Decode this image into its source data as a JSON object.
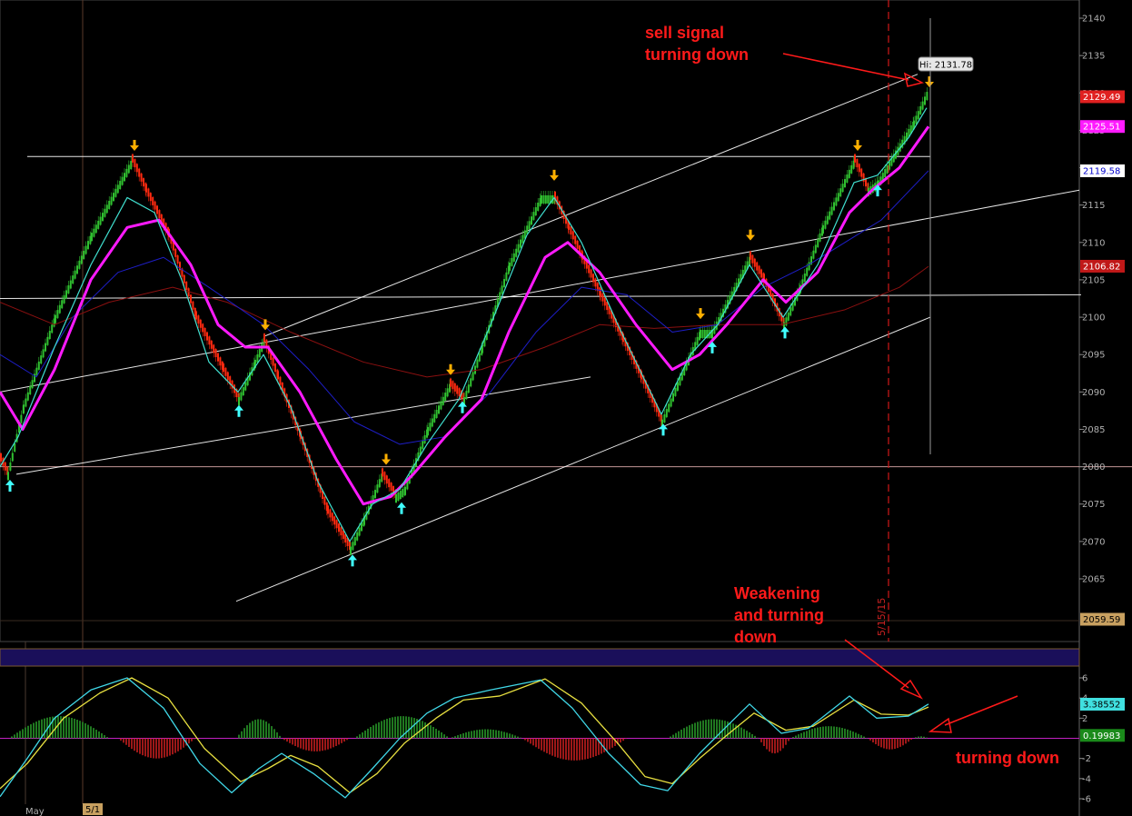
{
  "chart_data": [
    {
      "type": "line",
      "title": "",
      "ylim": [
        2061,
        2142
      ],
      "y_ticks": [
        2065,
        2070,
        2075,
        2080,
        2085,
        2090,
        2095,
        2100,
        2105,
        2110,
        2115,
        2120,
        2125,
        2130,
        2135,
        2140
      ],
      "x_labels": [
        "May",
        "5/1"
      ],
      "date_marker": "5/15/15",
      "hi_label": "Hi: 2131.78",
      "price_badges": [
        {
          "text": "2129.49",
          "value": 2129.49,
          "color": "#e02020",
          "text_color": "#ffffff"
        },
        {
          "text": "2125.51",
          "value": 2125.51,
          "color": "#ff1aff",
          "text_color": "#ffffff"
        },
        {
          "text": "2119.58",
          "value": 2119.58,
          "color": "#ffffff",
          "text_color": "#0000cc"
        },
        {
          "text": "2106.82",
          "value": 2106.82,
          "color": "#c01818",
          "text_color": "#ffffff"
        },
        {
          "text": "2059.59",
          "value": 2059.59,
          "color": "#c8a060",
          "text_color": "#000000"
        }
      ],
      "price_path": [
        [
          0,
          2081
        ],
        [
          8,
          2079
        ],
        [
          25,
          2088
        ],
        [
          60,
          2100
        ],
        [
          100,
          2111
        ],
        [
          145,
          2121
        ],
        [
          160,
          2117
        ],
        [
          185,
          2111
        ],
        [
          215,
          2100
        ],
        [
          245,
          2093
        ],
        [
          262,
          2089
        ],
        [
          280,
          2094
        ],
        [
          290,
          2097
        ],
        [
          305,
          2092
        ],
        [
          330,
          2084
        ],
        [
          360,
          2074
        ],
        [
          385,
          2069
        ],
        [
          400,
          2073
        ],
        [
          420,
          2079
        ],
        [
          435,
          2076
        ],
        [
          445,
          2077
        ],
        [
          470,
          2085
        ],
        [
          495,
          2091
        ],
        [
          510,
          2089
        ],
        [
          530,
          2096
        ],
        [
          560,
          2107
        ],
        [
          595,
          2116
        ],
        [
          610,
          2116
        ],
        [
          625,
          2112
        ],
        [
          640,
          2108
        ],
        [
          660,
          2103
        ],
        [
          685,
          2097
        ],
        [
          705,
          2092
        ],
        [
          728,
          2086
        ],
        [
          745,
          2091
        ],
        [
          770,
          2098
        ],
        [
          783,
          2098
        ],
        [
          800,
          2102
        ],
        [
          825,
          2108
        ],
        [
          840,
          2105
        ],
        [
          862,
          2099
        ],
        [
          880,
          2104
        ],
        [
          905,
          2112
        ],
        [
          940,
          2121
        ],
        [
          955,
          2117
        ],
        [
          966,
          2118
        ],
        [
          985,
          2122
        ],
        [
          1005,
          2126
        ],
        [
          1020,
          2130
        ]
      ],
      "series": [
        {
          "name": "",
          "color": "#40e0d0",
          "values": [
            [
              0,
              2080
            ],
            [
              20,
              2084
            ],
            [
              60,
              2096
            ],
            [
              100,
              2107
            ],
            [
              140,
              2116
            ],
            [
              170,
              2114
            ],
            [
              200,
              2105
            ],
            [
              230,
              2094
            ],
            [
              262,
              2090
            ],
            [
              290,
              2095
            ],
            [
              320,
              2088
            ],
            [
              350,
              2078
            ],
            [
              385,
              2070
            ],
            [
              410,
              2075
            ],
            [
              440,
              2077
            ],
            [
              470,
              2083
            ],
            [
              505,
              2089
            ],
            [
              540,
              2099
            ],
            [
              580,
              2111
            ],
            [
              610,
              2116
            ],
            [
              640,
              2110
            ],
            [
              680,
              2099
            ],
            [
              728,
              2087
            ],
            [
              760,
              2095
            ],
            [
              790,
              2099
            ],
            [
              825,
              2107
            ],
            [
              862,
              2100
            ],
            [
              900,
              2107
            ],
            [
              940,
              2118
            ],
            [
              966,
              2119
            ],
            [
              1000,
              2124
            ],
            [
              1020,
              2128
            ]
          ]
        },
        {
          "name": "",
          "color": "#ff1aff",
          "values": [
            [
              0,
              2090
            ],
            [
              25,
              2085
            ],
            [
              60,
              2093
            ],
            [
              100,
              2105
            ],
            [
              140,
              2112
            ],
            [
              175,
              2113
            ],
            [
              210,
              2107
            ],
            [
              240,
              2099
            ],
            [
              270,
              2096
            ],
            [
              295,
              2096
            ],
            [
              330,
              2090
            ],
            [
              370,
              2081
            ],
            [
              400,
              2075
            ],
            [
              430,
              2076
            ],
            [
              455,
              2079
            ],
            [
              490,
              2084
            ],
            [
              530,
              2089
            ],
            [
              560,
              2098
            ],
            [
              600,
              2108
            ],
            [
              625,
              2110
            ],
            [
              660,
              2106
            ],
            [
              700,
              2099
            ],
            [
              740,
              2093
            ],
            [
              770,
              2095
            ],
            [
              800,
              2099
            ],
            [
              840,
              2105
            ],
            [
              865,
              2102
            ],
            [
              900,
              2106
            ],
            [
              935,
              2114
            ],
            [
              960,
              2117
            ],
            [
              990,
              2120
            ],
            [
              1022,
              2125.5
            ]
          ]
        },
        {
          "name": "",
          "color": "#1e1ec8",
          "values": [
            [
              0,
              2095
            ],
            [
              40,
              2092
            ],
            [
              80,
              2100
            ],
            [
              130,
              2106
            ],
            [
              180,
              2108
            ],
            [
              230,
              2104
            ],
            [
              290,
              2099
            ],
            [
              340,
              2093
            ],
            [
              390,
              2086
            ],
            [
              440,
              2083
            ],
            [
              490,
              2084
            ],
            [
              540,
              2090
            ],
            [
              590,
              2098
            ],
            [
              640,
              2104
            ],
            [
              690,
              2103
            ],
            [
              740,
              2098
            ],
            [
              790,
              2099
            ],
            [
              840,
              2104
            ],
            [
              890,
              2107
            ],
            [
              930,
              2110
            ],
            [
              970,
              2113
            ],
            [
              1022,
              2119.6
            ]
          ]
        },
        {
          "name": "",
          "color": "#8b1010",
          "values": [
            [
              0,
              2102
            ],
            [
              60,
              2099
            ],
            [
              120,
              2102
            ],
            [
              190,
              2104
            ],
            [
              250,
              2102
            ],
            [
              320,
              2098
            ],
            [
              400,
              2094
            ],
            [
              470,
              2092
            ],
            [
              530,
              2093
            ],
            [
              600,
              2096
            ],
            [
              660,
              2099
            ],
            [
              720,
              2098.5
            ],
            [
              790,
              2099
            ],
            [
              860,
              2099
            ],
            [
              930,
              2101
            ],
            [
              990,
              2104
            ],
            [
              1022,
              2106.8
            ]
          ]
        }
      ],
      "signals_down": [
        [
          148,
          2122.5
        ],
        [
          292,
          2098.5
        ],
        [
          425,
          2080.5
        ],
        [
          496,
          2092.5
        ],
        [
          610,
          2118.5
        ],
        [
          771,
          2100
        ],
        [
          826,
          2110.5
        ],
        [
          944,
          2122.5
        ],
        [
          1023,
          2131
        ]
      ],
      "signals_up": [
        [
          11,
          2078
        ],
        [
          263,
          2088
        ],
        [
          388,
          2068
        ],
        [
          442,
          2075
        ],
        [
          509,
          2088.5
        ],
        [
          730,
          2085.5
        ],
        [
          784,
          2096.5
        ],
        [
          864,
          2098.5
        ],
        [
          966,
          2117.5
        ]
      ],
      "trendlines": [
        [
          [
            30,
            2121.5
          ],
          [
            1024,
            2121.5
          ]
        ],
        [
          [
            0,
            2080
          ],
          [
            1246,
            2080
          ]
        ],
        [
          [
            0,
            2102.5
          ],
          [
            1190,
            2103
          ]
        ],
        [
          [
            0,
            2090
          ],
          [
            1188,
            2117
          ]
        ],
        [
          [
            18,
            2079
          ],
          [
            650,
            2092
          ]
        ],
        [
          [
            260,
            2062
          ],
          [
            1024,
            2100
          ]
        ],
        [
          [
            292,
            2097.5
          ],
          [
            1010,
            2132.5
          ]
        ]
      ]
    },
    {
      "type": "line",
      "title": "",
      "ylim": [
        -6.8,
        7.5
      ],
      "y_ticks": [
        -6,
        -4,
        -2,
        2,
        4,
        6
      ],
      "value_badges": [
        {
          "text": "3.38552",
          "value": 3.38552,
          "color": "#40e0e0",
          "text_color": "#000000"
        },
        {
          "text": "0.19983",
          "value": 0.19983,
          "color": "#1a8a1a",
          "text_color": "#ffffff"
        }
      ],
      "series": [
        {
          "name": "",
          "color": "#40d8e8",
          "values": [
            [
              0,
              -5.8
            ],
            [
              30,
              -2
            ],
            [
              60,
              2
            ],
            [
              100,
              4.8
            ],
            [
              140,
              6
            ],
            [
              180,
              3
            ],
            [
              220,
              -2.5
            ],
            [
              255,
              -5.4
            ],
            [
              285,
              -3
            ],
            [
              310,
              -1.5
            ],
            [
              345,
              -3.5
            ],
            [
              380,
              -5.9
            ],
            [
              410,
              -3
            ],
            [
              440,
              0
            ],
            [
              470,
              2.5
            ],
            [
              500,
              4
            ],
            [
              540,
              4.8
            ],
            [
              595,
              5.8
            ],
            [
              630,
              3
            ],
            [
              670,
              -1.5
            ],
            [
              705,
              -4.6
            ],
            [
              735,
              -5.2
            ],
            [
              770,
              -1.5
            ],
            [
              800,
              1.2
            ],
            [
              825,
              3.4
            ],
            [
              860,
              0.5
            ],
            [
              890,
              1
            ],
            [
              935,
              4.2
            ],
            [
              965,
              2
            ],
            [
              1000,
              2.2
            ],
            [
              1022,
              3.4
            ]
          ]
        },
        {
          "name": "",
          "color": "#e8e040",
          "values": [
            [
              0,
              -5
            ],
            [
              30,
              -2.5
            ],
            [
              70,
              2
            ],
            [
              110,
              4.5
            ],
            [
              145,
              6
            ],
            [
              185,
              4
            ],
            [
              225,
              -1
            ],
            [
              265,
              -4.3
            ],
            [
              295,
              -3
            ],
            [
              320,
              -1.7
            ],
            [
              350,
              -2.8
            ],
            [
              385,
              -5.4
            ],
            [
              415,
              -3.5
            ],
            [
              445,
              -0.5
            ],
            [
              480,
              2
            ],
            [
              510,
              3.8
            ],
            [
              550,
              4.2
            ],
            [
              600,
              5.9
            ],
            [
              640,
              3.5
            ],
            [
              680,
              -0.5
            ],
            [
              710,
              -3.8
            ],
            [
              740,
              -4.5
            ],
            [
              770,
              -2
            ],
            [
              800,
              0.3
            ],
            [
              830,
              2.5
            ],
            [
              865,
              0.8
            ],
            [
              895,
              1.2
            ],
            [
              940,
              3.8
            ],
            [
              970,
              2.4
            ],
            [
              1000,
              2.3
            ],
            [
              1022,
              3.1
            ]
          ]
        }
      ],
      "histogram_spans": [
        [
          10,
          120,
          2.2
        ],
        [
          130,
          215,
          -2
        ],
        [
          260,
          310,
          1.9
        ],
        [
          310,
          385,
          -1.3
        ],
        [
          390,
          495,
          2.2
        ],
        [
          495,
          575,
          0.9
        ],
        [
          575,
          690,
          -2.2
        ],
        [
          735,
          835,
          1.9
        ],
        [
          835,
          870,
          -1.5
        ],
        [
          870,
          955,
          1.2
        ],
        [
          955,
          1005,
          -1.1
        ],
        [
          1005,
          1022,
          0.2
        ]
      ]
    }
  ],
  "annotations": {
    "sell_signal_line1": "sell signal",
    "sell_signal_line2": "turning down",
    "weakening_line1": "Weakening",
    "weakening_line2": "and turning",
    "weakening_line3": "down",
    "turning_down": "turning down"
  },
  "colors": {
    "up_candle": "#30c030",
    "down_candle": "#ff2a10",
    "signal_down": "#ffb000",
    "signal_up": "#40ffff",
    "trendline": "#ffffff",
    "support_line": "#d8a8a8",
    "grid": "#3a3a3a",
    "band": "#1a0f5a",
    "annotation": "#ff1a1a"
  }
}
